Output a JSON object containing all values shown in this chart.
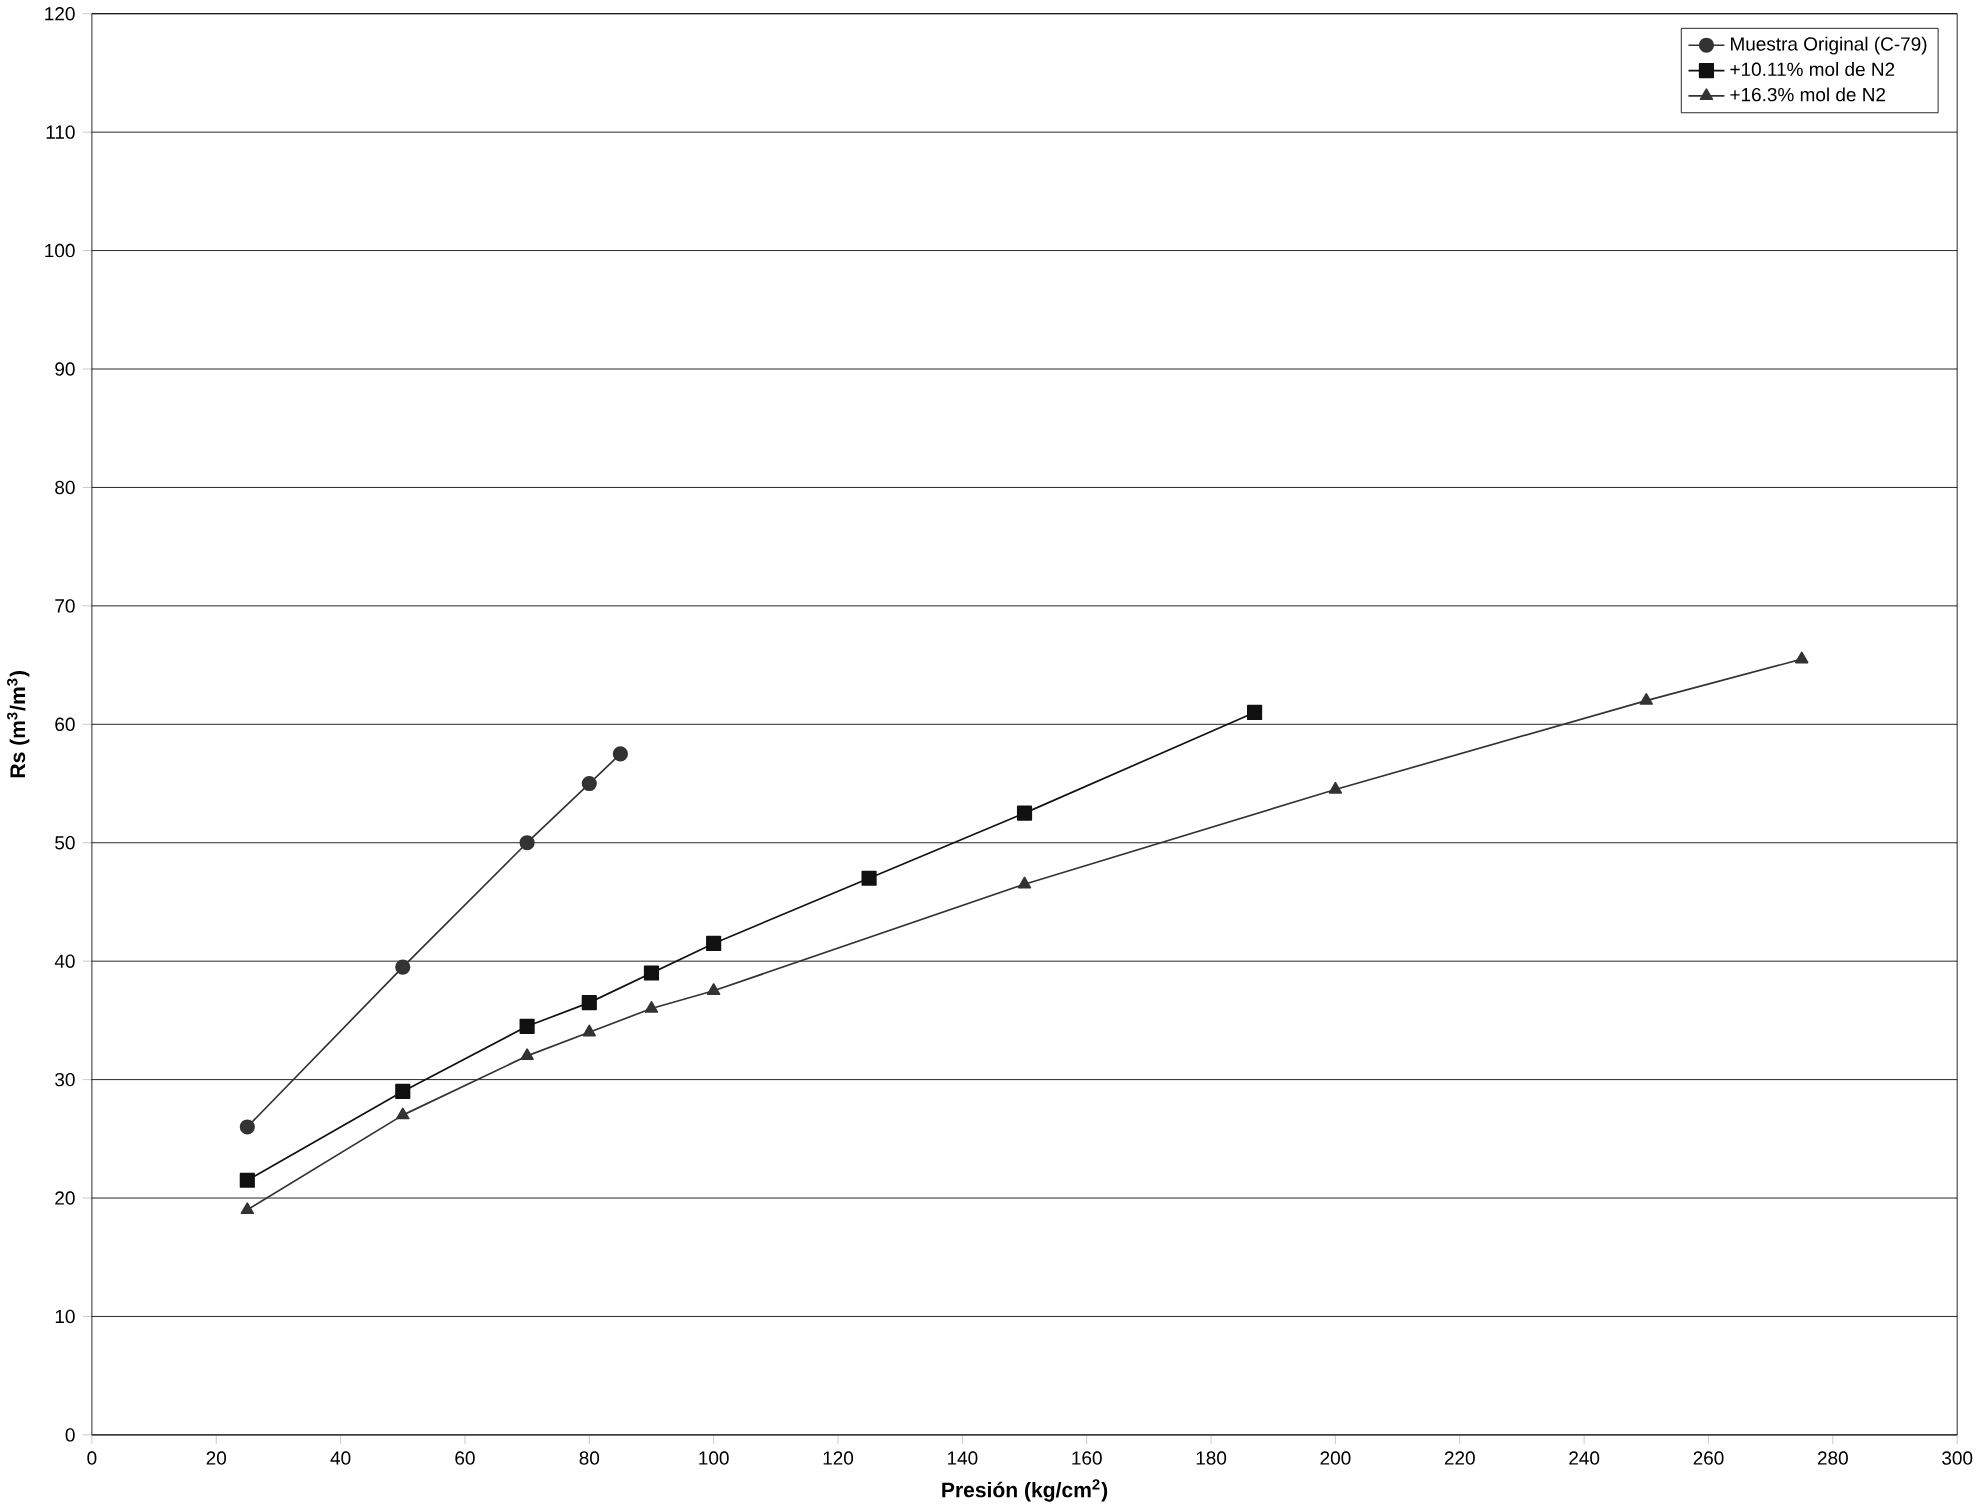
{
  "chart_data": {
    "type": "line",
    "xlabel": "Presión  (kg/cm$^{2}$)",
    "ylabel": "Rs  (m$^{3}$/m$^{3}$)",
    "xlim": [
      0,
      300
    ],
    "ylim": [
      0,
      120
    ],
    "xticks": [
      0,
      20,
      40,
      60,
      80,
      100,
      120,
      140,
      160,
      180,
      200,
      220,
      240,
      260,
      280,
      300
    ],
    "yticks": [
      0,
      10,
      20,
      30,
      40,
      50,
      60,
      70,
      80,
      90,
      100,
      110,
      120
    ],
    "grid": "y",
    "legend": "top right",
    "line_style": "solid",
    "series": [
      {
        "name": "Muestra Original (C-79)",
        "color": "#333333",
        "marker": "circle",
        "x": [
          25,
          50,
          70,
          80,
          85
        ],
        "values": [
          26,
          39.5,
          50,
          55,
          57.5
        ]
      },
      {
        "name": "+10.11% mol de N2",
        "color": "#111111",
        "marker": "square",
        "x": [
          25,
          50,
          70,
          80,
          90,
          100,
          125,
          150,
          187
        ],
        "values": [
          21.5,
          29,
          34.5,
          36.5,
          39,
          41.5,
          47,
          52.5,
          61
        ]
      },
      {
        "name": "+16.3% mol de N2",
        "color": "#333333",
        "marker": "triangle",
        "x": [
          25,
          50,
          70,
          80,
          90,
          100,
          150,
          200,
          250,
          275
        ],
        "values": [
          19,
          27,
          32,
          34,
          36,
          37.5,
          46.5,
          54.5,
          62,
          65.5
        ]
      }
    ]
  }
}
